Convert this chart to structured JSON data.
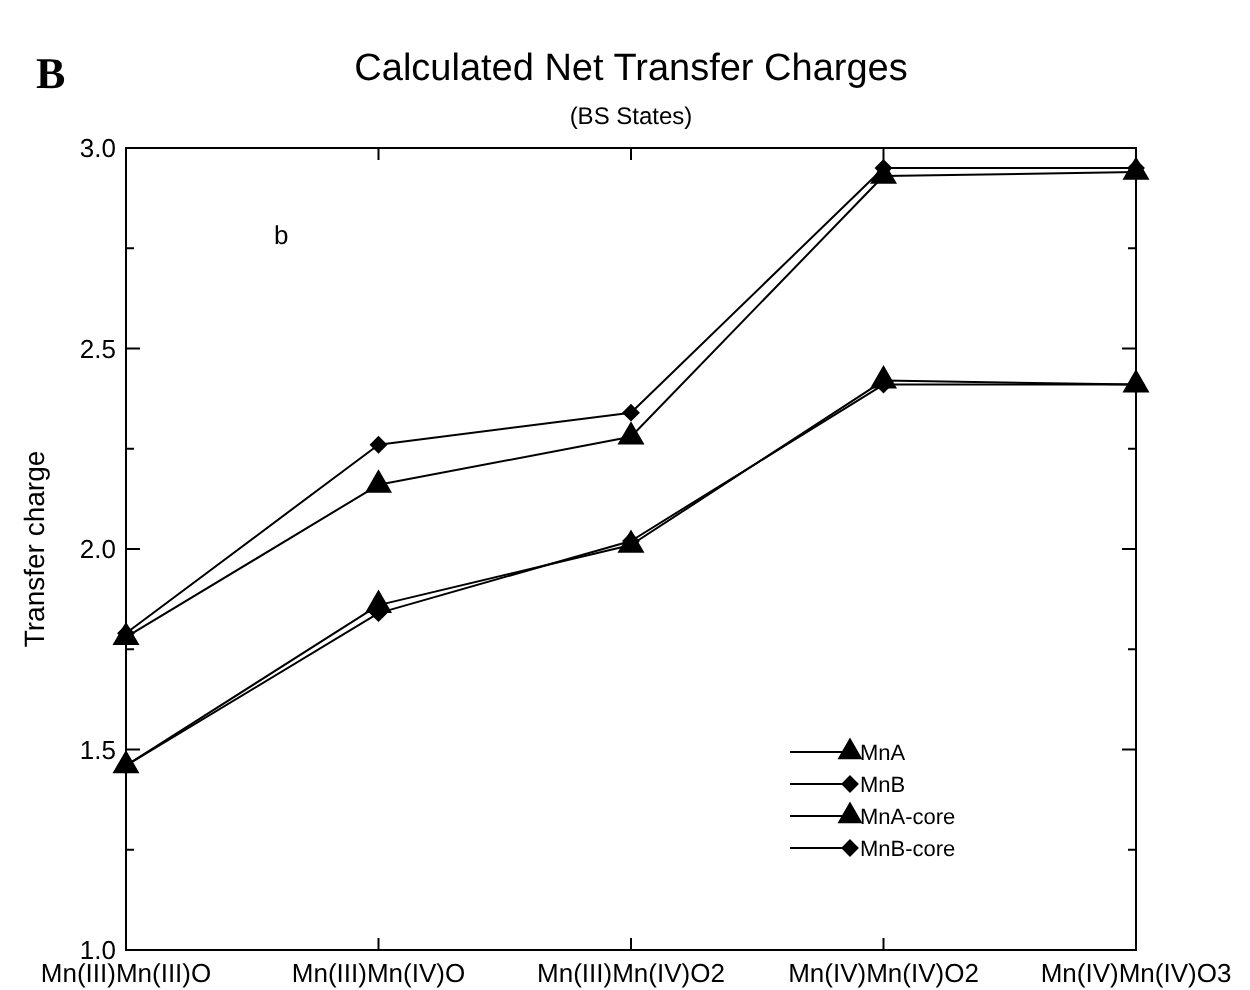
{
  "chart_data": {
    "type": "line",
    "title": "Calculated Net Transfer Charges",
    "subtitle": "(BS States)",
    "ylabel": "Transfer charge",
    "annotations": [
      "B",
      "b"
    ],
    "categories": [
      "Mn(III)Mn(III)O",
      "Mn(III)Mn(IV)O",
      "Mn(III)Mn(IV)O2",
      "Mn(IV)Mn(IV)O2",
      "Mn(IV)Mn(IV)O3"
    ],
    "ylim": [
      1,
      3
    ],
    "yticks": [
      {
        "value": 1,
        "label": "1.0"
      },
      {
        "value": 1.25,
        "label": null
      },
      {
        "value": 1.5,
        "label": "1.5"
      },
      {
        "value": 1.75,
        "label": null
      },
      {
        "value": 2,
        "label": "2.0"
      },
      {
        "value": 2.25,
        "label": null
      },
      {
        "value": 2.5,
        "label": "2.5"
      },
      {
        "value": 2.75,
        "label": null
      },
      {
        "value": 3,
        "label": "3.0"
      }
    ],
    "grid": false,
    "legend": "bottom right",
    "line_style": "solid",
    "series": [
      {
        "name": "MnA",
        "color": "#000000",
        "marker": "triangle",
        "values": [
          1.78,
          2.16,
          2.28,
          2.93,
          2.94
        ]
      },
      {
        "name": "MnB",
        "color": "#000000",
        "marker": "diamond",
        "values": [
          1.79,
          2.26,
          2.34,
          2.95,
          2.95
        ]
      },
      {
        "name": "MnA-core",
        "color": "#000000",
        "marker": "triangle",
        "values": [
          1.46,
          1.86,
          2.01,
          2.42,
          2.41
        ]
      },
      {
        "name": "MnB-core",
        "color": "#000000",
        "marker": "diamond",
        "values": [
          1.46,
          1.84,
          2.02,
          2.41,
          2.41
        ]
      }
    ]
  }
}
